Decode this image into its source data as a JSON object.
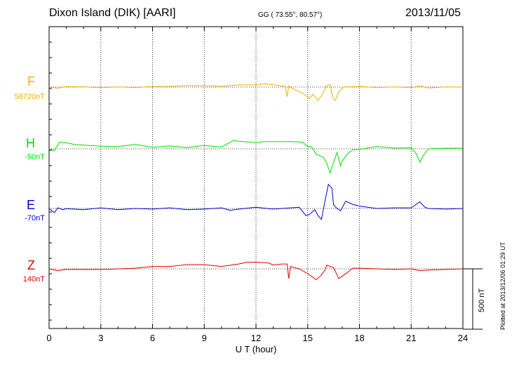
{
  "header": {
    "station": "Dixon Island (DIK)  [AARI]",
    "coords": "GG ( 73.55°,  80.57°)",
    "date": "2013/11/05"
  },
  "footer": {
    "plotted": "Plotted at 2013/12/06 01:29 UT"
  },
  "scale": {
    "label": "500 nT"
  },
  "colors": {
    "F": "#f0b000",
    "H": "#00e000",
    "E": "#0000d0",
    "Z": "#e00000"
  },
  "chart_data": {
    "type": "line",
    "title": "Dixon Island (DIK)  [AARI]",
    "xlabel": "U T (hour)",
    "ylabel": "",
    "xlim": [
      0,
      24
    ],
    "x_ticks": [
      "0",
      "3",
      "6",
      "9",
      "12",
      "15",
      "18",
      "21",
      "24"
    ],
    "grid": true,
    "scale_bar_nT": 500,
    "series": [
      {
        "name": "F",
        "baseline_label": "58720nT",
        "baseline_nT": 58720,
        "points": [
          [
            0,
            0
          ],
          [
            0.5,
            -10
          ],
          [
            1,
            4
          ],
          [
            2,
            2
          ],
          [
            3,
            -5
          ],
          [
            4,
            1
          ],
          [
            5,
            -4
          ],
          [
            6,
            4
          ],
          [
            7,
            5
          ],
          [
            8,
            12
          ],
          [
            9,
            12
          ],
          [
            10,
            6
          ],
          [
            11,
            18
          ],
          [
            12,
            18
          ],
          [
            12.5,
            27
          ],
          [
            13,
            18
          ],
          [
            13.7,
            6
          ],
          [
            13.8,
            -80
          ],
          [
            13.9,
            8
          ],
          [
            14.2,
            -18
          ],
          [
            14.5,
            -38
          ],
          [
            14.9,
            -70
          ],
          [
            15.1,
            -95
          ],
          [
            15.3,
            -60
          ],
          [
            15.6,
            -110
          ],
          [
            15.8,
            -70
          ],
          [
            16.1,
            10
          ],
          [
            16.3,
            22
          ],
          [
            16.45,
            -90
          ],
          [
            16.6,
            -110
          ],
          [
            16.8,
            -40
          ],
          [
            17.1,
            0
          ],
          [
            18,
            6
          ],
          [
            19,
            -4
          ],
          [
            20,
            2
          ],
          [
            21,
            -4
          ],
          [
            21.5,
            10
          ],
          [
            22,
            -8
          ],
          [
            23,
            2
          ],
          [
            24,
            0
          ]
        ]
      },
      {
        "name": "H",
        "baseline_label": "-50nT",
        "baseline_nT": -50,
        "points": [
          [
            0,
            0
          ],
          [
            0.3,
            -15
          ],
          [
            0.6,
            55
          ],
          [
            1,
            50
          ],
          [
            1.5,
            35
          ],
          [
            2,
            30
          ],
          [
            3,
            22
          ],
          [
            4,
            18
          ],
          [
            5,
            36
          ],
          [
            6,
            12
          ],
          [
            7,
            24
          ],
          [
            8,
            10
          ],
          [
            9,
            28
          ],
          [
            10,
            15
          ],
          [
            10.7,
            70
          ],
          [
            11,
            62
          ],
          [
            12,
            52
          ],
          [
            12.5,
            60
          ],
          [
            13,
            60
          ],
          [
            14,
            60
          ],
          [
            14.7,
            55
          ],
          [
            15,
            18
          ],
          [
            15.2,
            18
          ],
          [
            15.5,
            -45
          ],
          [
            15.9,
            -70
          ],
          [
            16.1,
            -120
          ],
          [
            16.3,
            -200
          ],
          [
            16.5,
            -110
          ],
          [
            16.7,
            -30
          ],
          [
            16.9,
            -140
          ],
          [
            17,
            -100
          ],
          [
            17.3,
            -40
          ],
          [
            17.6,
            -10
          ],
          [
            18,
            -5
          ],
          [
            19,
            20
          ],
          [
            20,
            6
          ],
          [
            21,
            8
          ],
          [
            21.3,
            -40
          ],
          [
            21.5,
            -110
          ],
          [
            21.7,
            -55
          ],
          [
            22,
            0
          ],
          [
            23,
            5
          ],
          [
            24,
            5
          ]
        ]
      },
      {
        "name": "E",
        "baseline_label": "-70nT",
        "baseline_nT": -70,
        "points": [
          [
            0,
            0
          ],
          [
            0.3,
            -35
          ],
          [
            0.5,
            5
          ],
          [
            0.8,
            -10
          ],
          [
            1,
            -2
          ],
          [
            2,
            -10
          ],
          [
            3,
            5
          ],
          [
            4,
            -10
          ],
          [
            5,
            0
          ],
          [
            6,
            -5
          ],
          [
            7,
            5
          ],
          [
            8,
            -10
          ],
          [
            9,
            -5
          ],
          [
            10,
            5
          ],
          [
            10.5,
            -15
          ],
          [
            11,
            -5
          ],
          [
            12,
            10
          ],
          [
            13,
            -5
          ],
          [
            14,
            5
          ],
          [
            14.5,
            10
          ],
          [
            14.9,
            -60
          ],
          [
            15.1,
            -50
          ],
          [
            15.4,
            -10
          ],
          [
            15.6,
            -60
          ],
          [
            15.8,
            -90
          ],
          [
            16,
            60
          ],
          [
            16.2,
            200
          ],
          [
            16.4,
            170
          ],
          [
            16.5,
            30
          ],
          [
            16.7,
            0
          ],
          [
            16.9,
            -20
          ],
          [
            17.2,
            60
          ],
          [
            17.6,
            35
          ],
          [
            18,
            20
          ],
          [
            19,
            0
          ],
          [
            20,
            5
          ],
          [
            21,
            5
          ],
          [
            21.5,
            55
          ],
          [
            21.8,
            10
          ],
          [
            22,
            0
          ],
          [
            23,
            -5
          ],
          [
            24,
            0
          ]
        ]
      },
      {
        "name": "Z",
        "baseline_label": "140nT",
        "baseline_nT": 140,
        "points": [
          [
            0,
            0
          ],
          [
            0.5,
            -15
          ],
          [
            1,
            -5
          ],
          [
            2,
            -5
          ],
          [
            3,
            -5
          ],
          [
            4,
            0
          ],
          [
            5,
            5
          ],
          [
            6,
            20
          ],
          [
            7,
            20
          ],
          [
            8,
            35
          ],
          [
            9,
            35
          ],
          [
            10,
            20
          ],
          [
            11,
            40
          ],
          [
            11.5,
            55
          ],
          [
            12,
            55
          ],
          [
            12.7,
            50
          ],
          [
            13,
            32
          ],
          [
            13.5,
            40
          ],
          [
            13.8,
            40
          ],
          [
            13.9,
            -80
          ],
          [
            14,
            20
          ],
          [
            14.5,
            0
          ],
          [
            15,
            -40
          ],
          [
            15.2,
            -60
          ],
          [
            15.5,
            -90
          ],
          [
            15.8,
            -50
          ],
          [
            16,
            -10
          ],
          [
            16.1,
            30
          ],
          [
            16.5,
            10
          ],
          [
            16.8,
            -80
          ],
          [
            17,
            -60
          ],
          [
            17.3,
            -30
          ],
          [
            17.6,
            5
          ],
          [
            18,
            5
          ],
          [
            19,
            0
          ],
          [
            20,
            -5
          ],
          [
            21,
            0
          ],
          [
            21.5,
            -15
          ],
          [
            22,
            -10
          ],
          [
            23,
            -5
          ],
          [
            24,
            0
          ]
        ]
      }
    ]
  }
}
